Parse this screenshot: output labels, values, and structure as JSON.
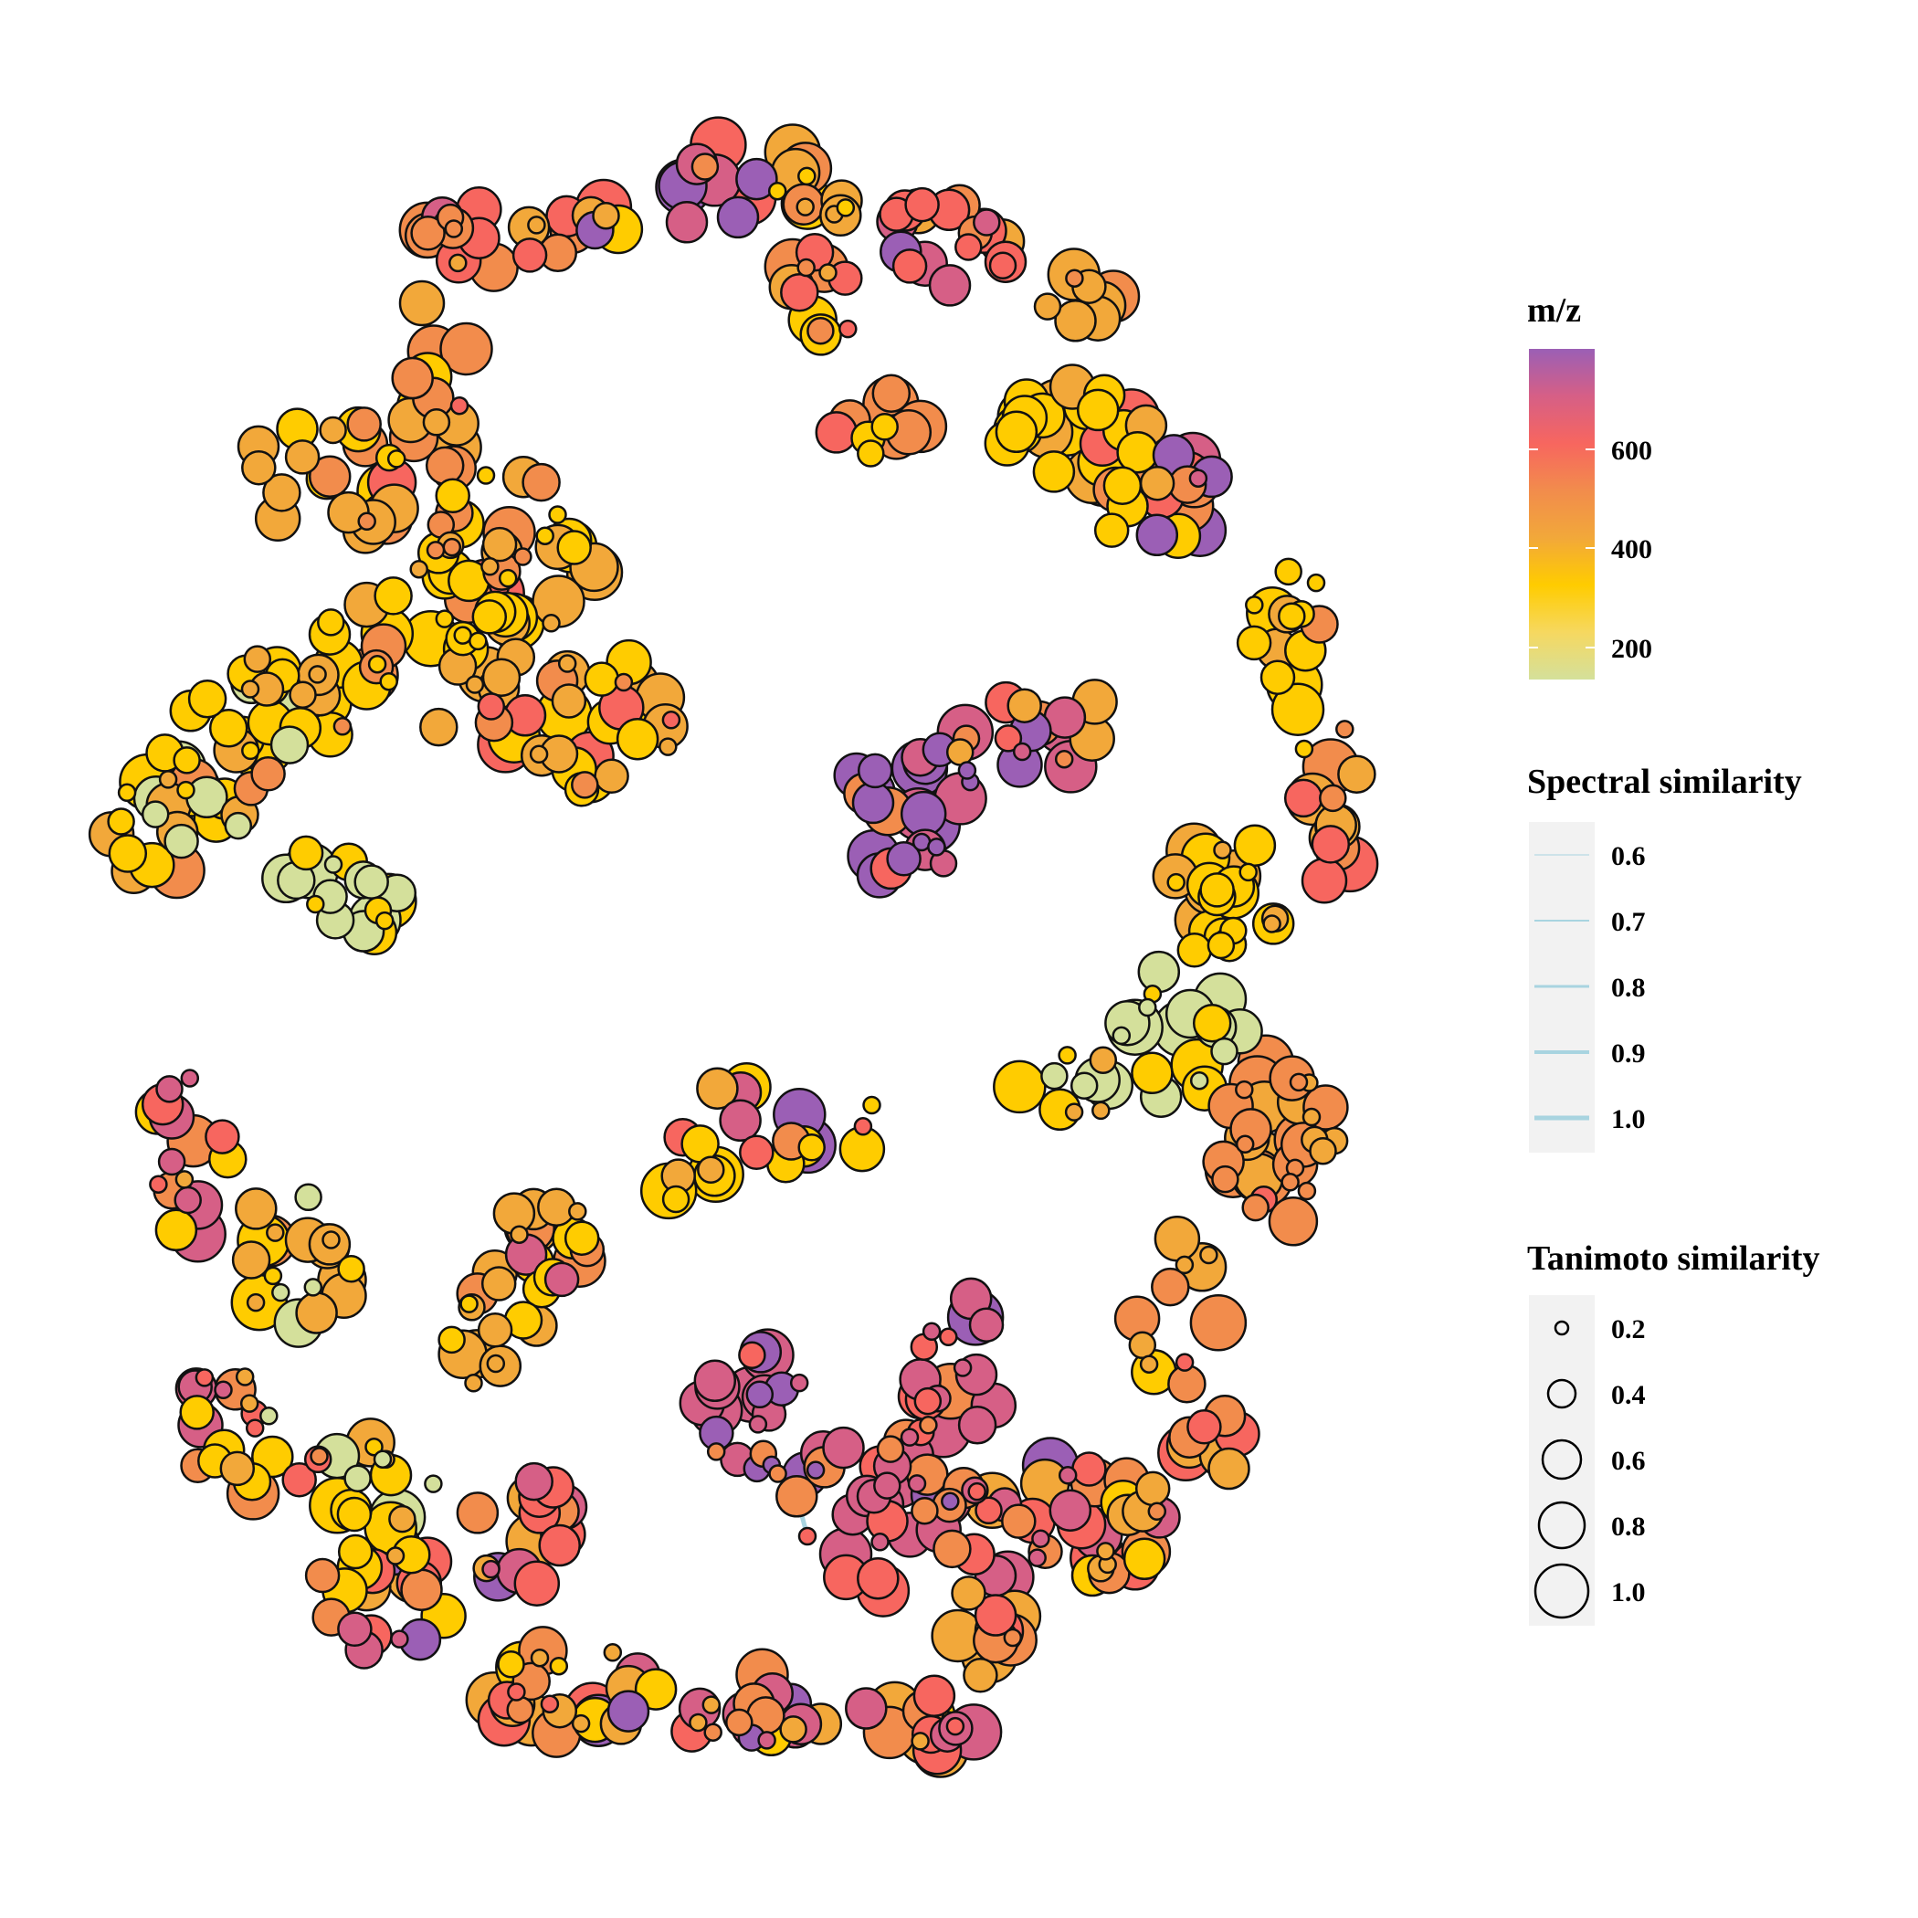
{
  "legend": {
    "color": {
      "title": "m/z",
      "ticks": [
        "200",
        "400",
        "600"
      ],
      "gradient": [
        "#d4e09b",
        "#f6d860",
        "#ffcc00",
        "#f2a83a",
        "#f28c4c",
        "#f7665f",
        "#d65f86",
        "#9b5fb5"
      ]
    },
    "edge": {
      "title": "Spectral similarity",
      "items": [
        "0.6",
        "0.7",
        "0.8",
        "0.9",
        "1.0"
      ],
      "color": "#a8d4e0"
    },
    "size": {
      "title": "Tanimoto similarity",
      "items": [
        "0.2",
        "0.4",
        "0.6",
        "0.8",
        "1.0"
      ]
    }
  },
  "chart_data": {
    "type": "network",
    "node_color_encodes": "m/z",
    "node_size_encodes": "Tanimoto similarity",
    "edge_width_encodes": "Spectral similarity",
    "mz_range": [
      150,
      800
    ],
    "node_colors": {
      "low": "#d4e09b",
      "yellow": "#ffcc00",
      "orange": "#f2a83a",
      "coral": "#f28c4c",
      "red": "#f7665f",
      "pink": "#d65f86",
      "purple": "#9b5fb5"
    }
  }
}
